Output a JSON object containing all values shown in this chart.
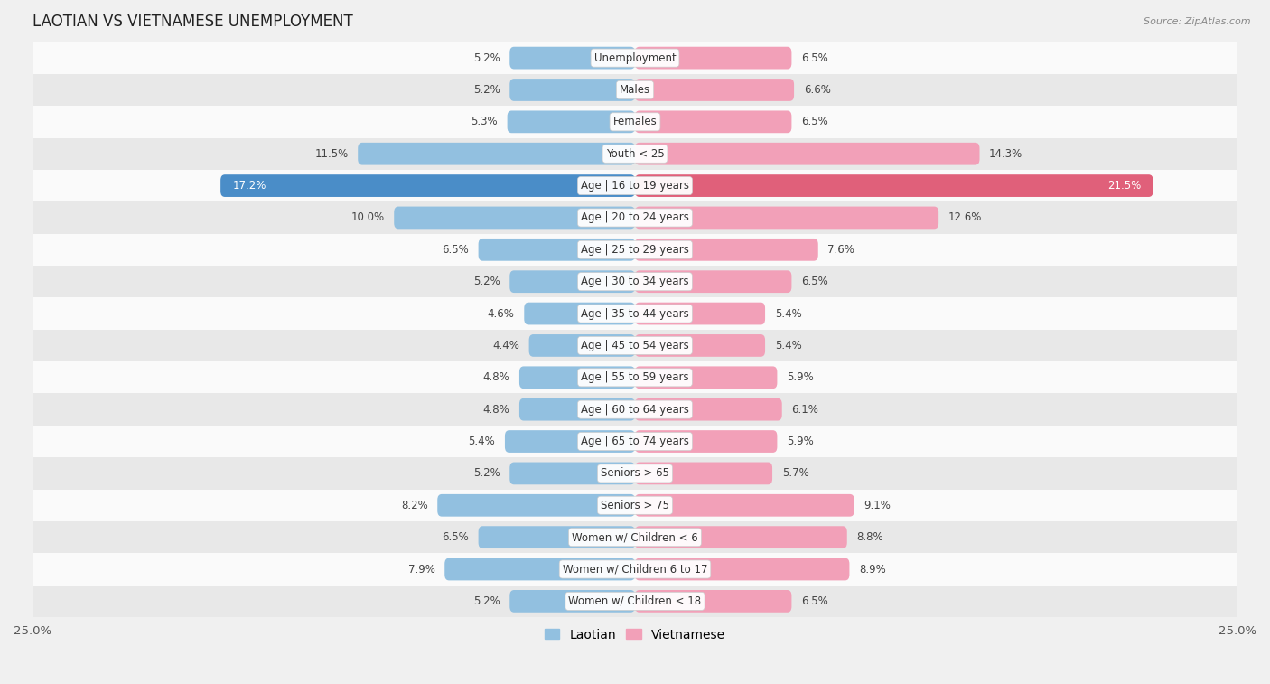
{
  "title": "LAOTIAN VS VIETNAMESE UNEMPLOYMENT",
  "source": "Source: ZipAtlas.com",
  "categories": [
    "Unemployment",
    "Males",
    "Females",
    "Youth < 25",
    "Age | 16 to 19 years",
    "Age | 20 to 24 years",
    "Age | 25 to 29 years",
    "Age | 30 to 34 years",
    "Age | 35 to 44 years",
    "Age | 45 to 54 years",
    "Age | 55 to 59 years",
    "Age | 60 to 64 years",
    "Age | 65 to 74 years",
    "Seniors > 65",
    "Seniors > 75",
    "Women w/ Children < 6",
    "Women w/ Children 6 to 17",
    "Women w/ Children < 18"
  ],
  "laotian": [
    5.2,
    5.2,
    5.3,
    11.5,
    17.2,
    10.0,
    6.5,
    5.2,
    4.6,
    4.4,
    4.8,
    4.8,
    5.4,
    5.2,
    8.2,
    6.5,
    7.9,
    5.2
  ],
  "vietnamese": [
    6.5,
    6.6,
    6.5,
    14.3,
    21.5,
    12.6,
    7.6,
    6.5,
    5.4,
    5.4,
    5.9,
    6.1,
    5.9,
    5.7,
    9.1,
    8.8,
    8.9,
    6.5
  ],
  "laotian_color": "#92C0E0",
  "vietnamese_color": "#F2A0B8",
  "highlight_laotian_color": "#4A8DC8",
  "highlight_vietnamese_color": "#E0607A",
  "background_color": "#f0f0f0",
  "row_bg_light": "#fafafa",
  "row_bg_dark": "#e8e8e8",
  "xlim": 25.0,
  "bar_height": 0.7,
  "label_fontsize": 8.5,
  "title_fontsize": 12,
  "category_fontsize": 8.5,
  "highlight_indices": [
    4
  ]
}
